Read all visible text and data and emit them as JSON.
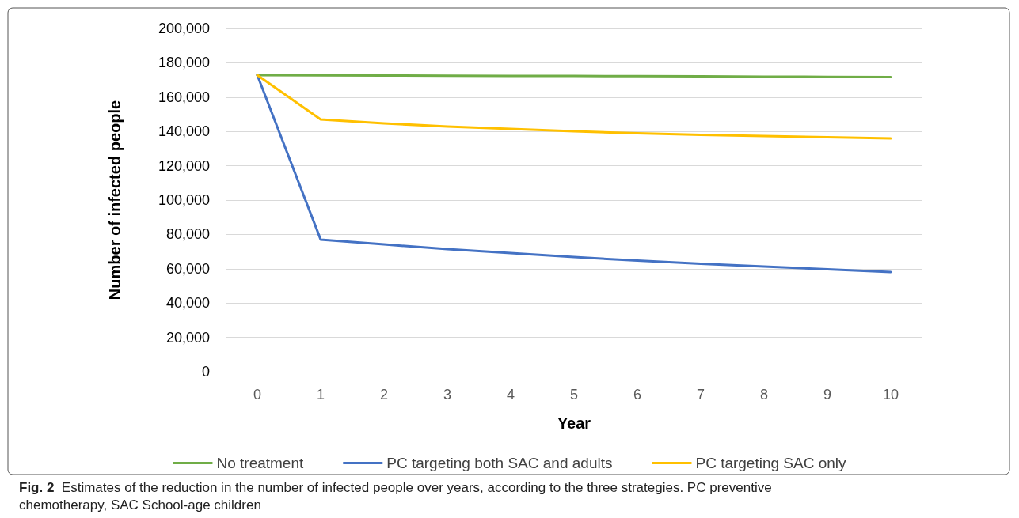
{
  "chart_data": {
    "type": "line",
    "xlabel": "Year",
    "ylabel": "Number of infected people",
    "categories": [
      "0",
      "1",
      "2",
      "3",
      "4",
      "5",
      "6",
      "7",
      "8",
      "9",
      "10"
    ],
    "series": [
      {
        "name": "No treatment",
        "color": "#70ad47",
        "values": [
          172800,
          172700,
          172600,
          172500,
          172400,
          172300,
          172200,
          172100,
          171900,
          171800,
          171700
        ]
      },
      {
        "name": "PC targeting both SAC and adults",
        "color": "#4472c4",
        "values": [
          172800,
          77000,
          74200,
          71400,
          69100,
          66800,
          64700,
          62900,
          61300,
          59700,
          58100
        ]
      },
      {
        "name": "PC targeting SAC only",
        "color": "#ffc000",
        "values": [
          172800,
          147000,
          144700,
          142900,
          141500,
          140100,
          138900,
          138000,
          137300,
          136600,
          135900
        ]
      }
    ],
    "ylim": [
      0,
      200000
    ],
    "yticks": [
      0,
      {
        "value": 20000,
        "label": "20,000"
      },
      {
        "value": 40000,
        "label": "40,000"
      },
      {
        "value": 60000,
        "label": "60,000"
      },
      {
        "value": 80000,
        "label": "80,000"
      },
      {
        "value": 100000,
        "label": "100,000"
      },
      {
        "value": 120000,
        "label": "120,000"
      },
      {
        "value": 140000,
        "label": "140,000"
      },
      {
        "value": 160000,
        "label": "160,000"
      },
      {
        "value": 180000,
        "label": "180,000"
      },
      {
        "value": 200000,
        "label": "200,000"
      }
    ],
    "grid": "y",
    "legend": "bottom",
    "marker": "none",
    "line_style": "solid",
    "annotations": [
      "Fig. 2  Estimates of the reduction in the number of infected people over years, according to the three strategies. PC preventive chemotherapy, SAC School-age children"
    ]
  }
}
